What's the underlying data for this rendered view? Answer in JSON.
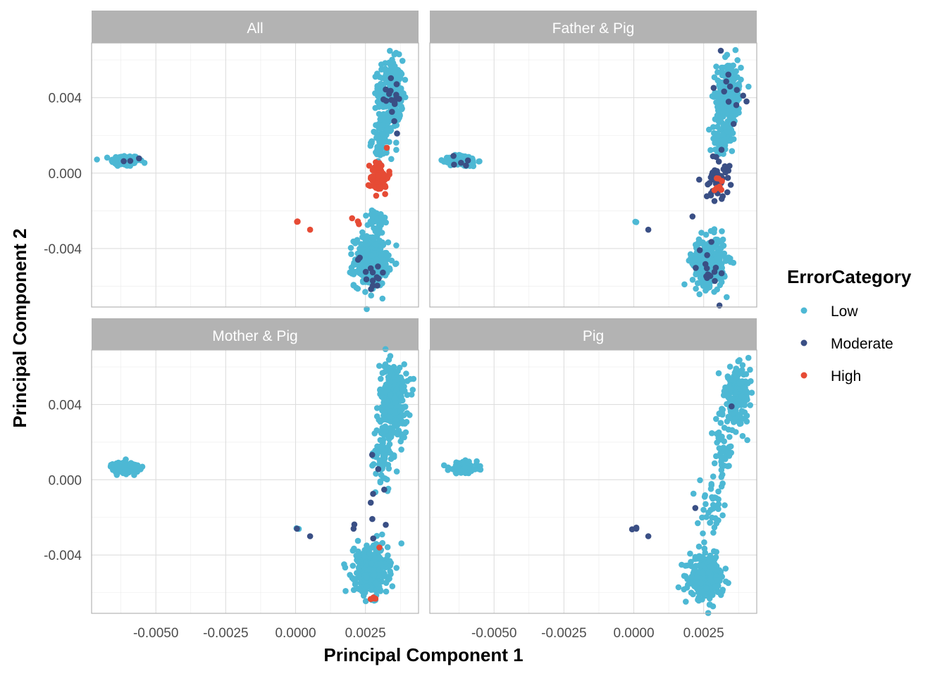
{
  "chart_data": {
    "type": "scatter",
    "xlabel": "Principal Component 1",
    "ylabel": "Principal Component 2",
    "xlim": [
      -0.0073,
      0.0044
    ],
    "ylim": [
      -0.0071,
      0.0069
    ],
    "x_ticks": [
      -0.005,
      -0.0025,
      0,
      0.0025
    ],
    "x_tick_labels": [
      "-0.0050",
      "-0.0025",
      "0.0000",
      "0.0025"
    ],
    "y_ticks": [
      -0.004,
      0,
      0.004
    ],
    "y_tick_labels": [
      "-0.004",
      "0.000",
      "0.004"
    ],
    "grid": true,
    "legend": {
      "title": "ErrorCategory",
      "position": "right",
      "entries": [
        {
          "label": "Low",
          "color": "#4db8d4"
        },
        {
          "label": "Moderate",
          "color": "#3a4f85"
        },
        {
          "label": "High",
          "color": "#e64b35"
        }
      ]
    },
    "facets": [
      {
        "title": "All",
        "clusters": [
          {
            "category": "Low",
            "cx": -0.0061,
            "cy": 0.00065,
            "sx": 0.00025,
            "sy": 0.00015,
            "n": 140
          },
          {
            "category": "Low",
            "cx": 0.0034,
            "cy": 0.0042,
            "sx": 0.00022,
            "sy": 0.0009,
            "n": 260
          },
          {
            "category": "Low",
            "cx": 0.0031,
            "cy": 0.0018,
            "sx": 0.00018,
            "sy": 0.0005,
            "n": 70
          },
          {
            "category": "Low",
            "cx": 0.0027,
            "cy": -0.0047,
            "sx": 0.0003,
            "sy": 0.00065,
            "n": 320
          },
          {
            "category": "Low",
            "cx": 0.0029,
            "cy": -0.0026,
            "sx": 0.00015,
            "sy": 0.00035,
            "n": 40
          },
          {
            "category": "Moderate",
            "cx": 0.0034,
            "cy": 0.0042,
            "sx": 0.00025,
            "sy": 0.0008,
            "n": 18
          },
          {
            "category": "Moderate",
            "cx": 0.0027,
            "cy": -0.0052,
            "sx": 0.00025,
            "sy": 0.0006,
            "n": 14
          },
          {
            "category": "Moderate",
            "cx": -0.006,
            "cy": 0.0006,
            "sx": 0.00045,
            "sy": 0.0001,
            "n": 3
          },
          {
            "category": "High",
            "cx": 0.003,
            "cy": -0.0002,
            "sx": 0.00016,
            "sy": 0.00045,
            "n": 60
          },
          {
            "category": "High",
            "cx": 5e-05,
            "cy": -0.0026,
            "sx": 4e-05,
            "sy": 4e-05,
            "n": 3
          },
          {
            "category": "High",
            "cx": 0.00052,
            "cy": -0.003,
            "sx": 1e-05,
            "sy": 1e-05,
            "n": 1
          },
          {
            "category": "High",
            "cx": 0.0022,
            "cy": -0.0024,
            "sx": 0.0001,
            "sy": 0.0002,
            "n": 3
          }
        ]
      },
      {
        "title": "Father & Pig",
        "clusters": [
          {
            "category": "Low",
            "cx": -0.0061,
            "cy": 0.00065,
            "sx": 0.00025,
            "sy": 0.00015,
            "n": 130
          },
          {
            "category": "Low",
            "cx": 0.0034,
            "cy": 0.0042,
            "sx": 0.00022,
            "sy": 0.0009,
            "n": 250
          },
          {
            "category": "Low",
            "cx": 0.0031,
            "cy": 0.0018,
            "sx": 0.00018,
            "sy": 0.0005,
            "n": 60
          },
          {
            "category": "Low",
            "cx": 0.0027,
            "cy": -0.0047,
            "sx": 0.0003,
            "sy": 0.00065,
            "n": 300
          },
          {
            "category": "Low",
            "cx": 5e-05,
            "cy": -0.0026,
            "sx": 3e-05,
            "sy": 3e-05,
            "n": 2
          },
          {
            "category": "Moderate",
            "cx": 0.003,
            "cy": -0.0002,
            "sx": 0.00022,
            "sy": 0.0006,
            "n": 45
          },
          {
            "category": "Moderate",
            "cx": 0.0034,
            "cy": 0.0045,
            "sx": 0.00025,
            "sy": 0.0008,
            "n": 12
          },
          {
            "category": "Moderate",
            "cx": 0.0027,
            "cy": -0.0048,
            "sx": 0.00025,
            "sy": 0.0009,
            "n": 16
          },
          {
            "category": "Moderate",
            "cx": -0.006,
            "cy": 0.0006,
            "sx": 0.0003,
            "sy": 0.0002,
            "n": 5
          },
          {
            "category": "Moderate",
            "cx": 0.00052,
            "cy": -0.003,
            "sx": 1e-05,
            "sy": 1e-05,
            "n": 1
          },
          {
            "category": "Moderate",
            "cx": 0.0021,
            "cy": -0.0023,
            "sx": 5e-05,
            "sy": 5e-05,
            "n": 1
          },
          {
            "category": "High",
            "cx": 0.003,
            "cy": -0.0006,
            "sx": 0.0001,
            "sy": 0.0003,
            "n": 8
          }
        ]
      },
      {
        "title": "Mother & Pig",
        "clusters": [
          {
            "category": "Low",
            "cx": -0.0061,
            "cy": 0.00065,
            "sx": 0.00025,
            "sy": 0.00015,
            "n": 140
          },
          {
            "category": "Low",
            "cx": 0.0035,
            "cy": 0.0042,
            "sx": 0.00025,
            "sy": 0.001,
            "n": 300
          },
          {
            "category": "Low",
            "cx": 0.0031,
            "cy": 0.0012,
            "sx": 0.0002,
            "sy": 0.0009,
            "n": 60
          },
          {
            "category": "Low",
            "cx": 0.0027,
            "cy": -0.0048,
            "sx": 0.0003,
            "sy": 0.00065,
            "n": 330
          },
          {
            "category": "Low",
            "cx": 5e-05,
            "cy": -0.0026,
            "sx": 3e-05,
            "sy": 3e-05,
            "n": 2
          },
          {
            "category": "Moderate",
            "cx": 0.0029,
            "cy": -0.0012,
            "sx": 0.0002,
            "sy": 0.0012,
            "n": 8
          },
          {
            "category": "Moderate",
            "cx": 5e-05,
            "cy": -0.0026,
            "sx": 3e-05,
            "sy": 3e-05,
            "n": 1
          },
          {
            "category": "Moderate",
            "cx": 0.00052,
            "cy": -0.003,
            "sx": 1e-05,
            "sy": 1e-05,
            "n": 1
          },
          {
            "category": "Moderate",
            "cx": 0.0021,
            "cy": -0.0023,
            "sx": 8e-05,
            "sy": 0.0003,
            "n": 2
          },
          {
            "category": "High",
            "cx": 0.003,
            "cy": -0.0036,
            "sx": 5e-05,
            "sy": 5e-05,
            "n": 1
          },
          {
            "category": "High",
            "cx": 0.0028,
            "cy": -0.0062,
            "sx": 8e-05,
            "sy": 0.0001,
            "n": 4
          }
        ]
      },
      {
        "title": "Pig",
        "clusters": [
          {
            "category": "Low",
            "cx": -0.0061,
            "cy": 0.00065,
            "sx": 0.00025,
            "sy": 0.00015,
            "n": 140
          },
          {
            "category": "Low",
            "cx": 0.0037,
            "cy": 0.0045,
            "sx": 0.00022,
            "sy": 0.0007,
            "n": 180
          },
          {
            "category": "Low",
            "cx": 0.0032,
            "cy": 0.0018,
            "sx": 0.00018,
            "sy": 0.0009,
            "n": 50
          },
          {
            "category": "Low",
            "cx": 0.0028,
            "cy": -0.0015,
            "sx": 0.00025,
            "sy": 0.0008,
            "n": 40
          },
          {
            "category": "Low",
            "cx": 0.0026,
            "cy": -0.0052,
            "sx": 0.0003,
            "sy": 0.00055,
            "n": 280
          },
          {
            "category": "Moderate",
            "cx": 5e-05,
            "cy": -0.0026,
            "sx": 4e-05,
            "sy": 4e-05,
            "n": 3
          },
          {
            "category": "Moderate",
            "cx": 0.00052,
            "cy": -0.003,
            "sx": 1e-05,
            "sy": 1e-05,
            "n": 1
          },
          {
            "category": "Moderate",
            "cx": 0.0022,
            "cy": -0.0015,
            "sx": 5e-05,
            "sy": 5e-05,
            "n": 1
          },
          {
            "category": "Moderate",
            "cx": 0.0035,
            "cy": 0.0039,
            "sx": 3e-05,
            "sy": 3e-05,
            "n": 1
          }
        ]
      }
    ]
  }
}
